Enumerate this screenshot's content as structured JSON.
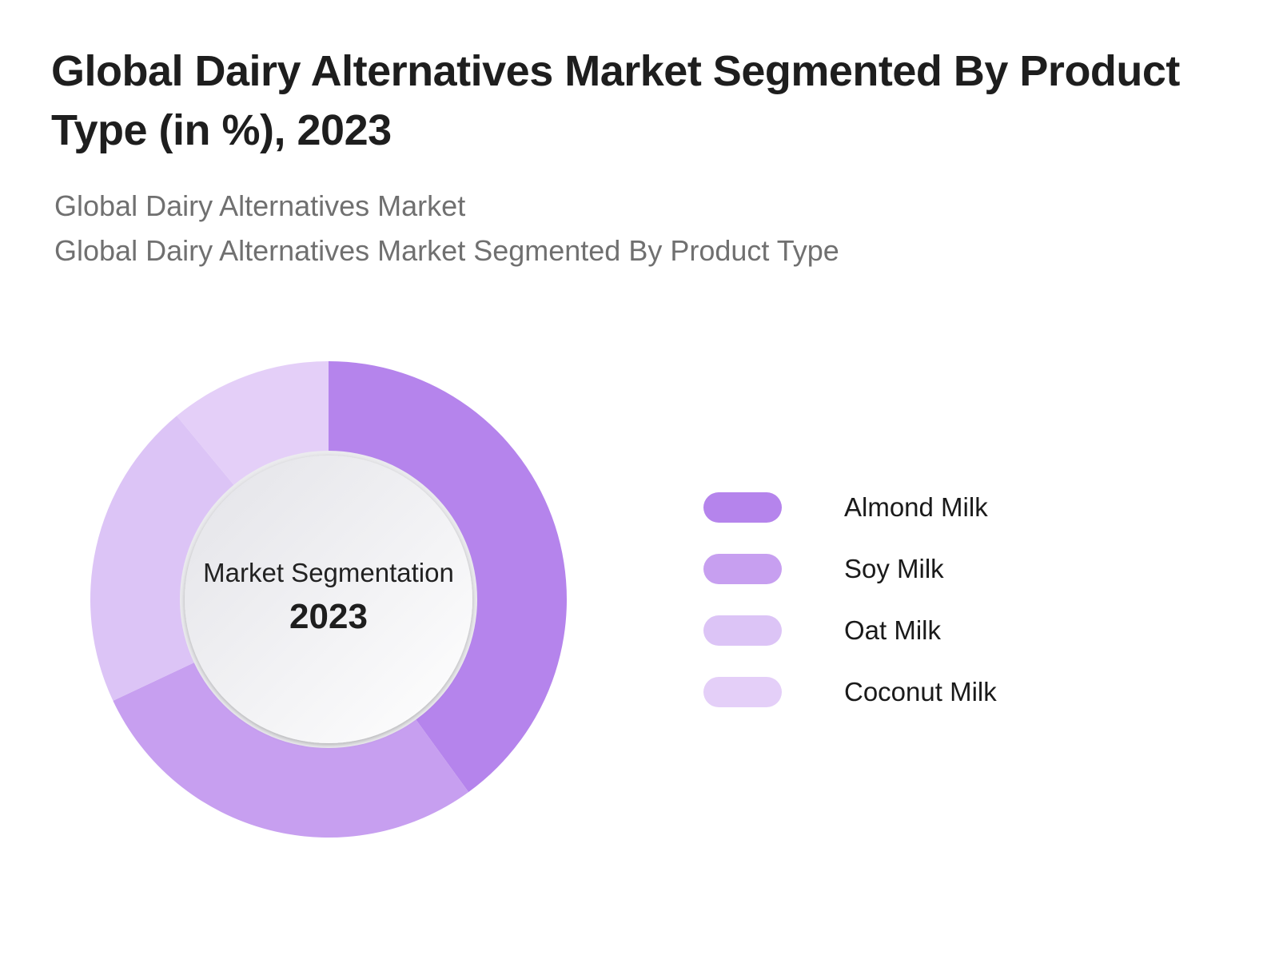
{
  "title": "Global Dairy Alternatives Market Segmented By Product Type (in %), 2023",
  "subtitle_lines": [
    "Global Dairy Alternatives Market",
    "Global Dairy Alternatives Market Segmented By Product Type"
  ],
  "center": {
    "label": "Market Segmentation",
    "year": "2023"
  },
  "chart_data": {
    "type": "pie",
    "variant": "donut",
    "title": "Global Dairy Alternatives Market Segmented By Product Type (in %), 2023",
    "categories": [
      "Almond Milk",
      "Soy Milk",
      "Oat Milk",
      "Coconut Milk"
    ],
    "values": [
      40,
      28,
      21,
      11
    ],
    "colors": [
      "#b584ec",
      "#c79ff0",
      "#dcc4f6",
      "#e4cff8"
    ],
    "legend_position": "right",
    "start_angle": "12 o'clock",
    "direction": "clockwise"
  }
}
